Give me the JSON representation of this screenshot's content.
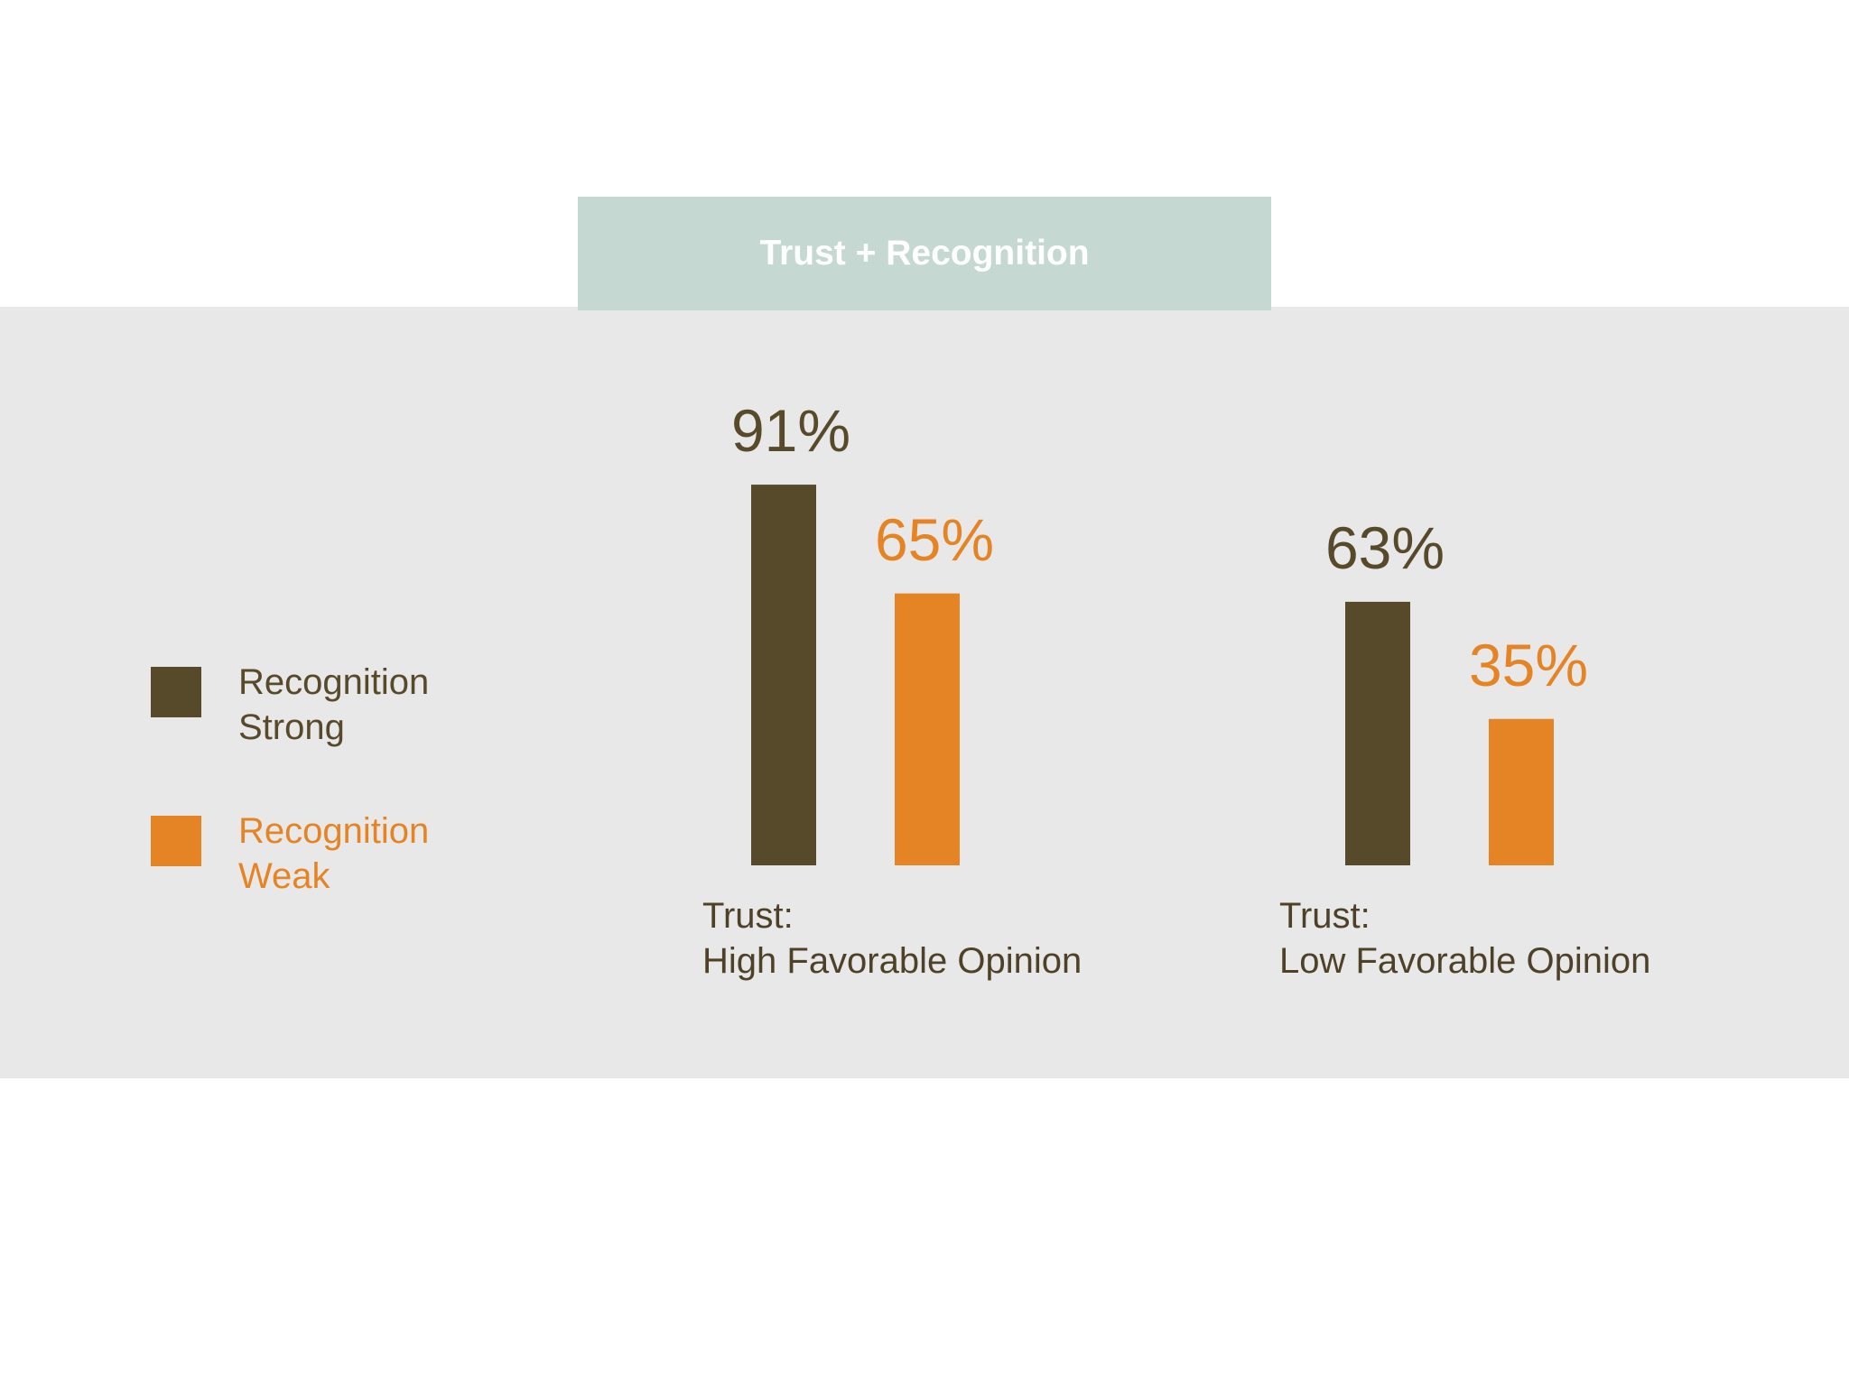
{
  "chart_data": {
    "type": "bar",
    "title": "Trust + Recognition",
    "categories": [
      "Trust:\nHigh Favorable Opinion",
      "Trust:\nLow Favorable Opinion"
    ],
    "series": [
      {
        "name": "Recognition Strong",
        "color": "#574a2b",
        "values": [
          91,
          63
        ],
        "value_labels": [
          "91%",
          "63%"
        ]
      },
      {
        "name": "Recognition Weak",
        "color": "#e58424",
        "values": [
          65,
          35
        ],
        "value_labels": [
          "65%",
          "35%"
        ]
      }
    ],
    "legend": "left"
  }
}
